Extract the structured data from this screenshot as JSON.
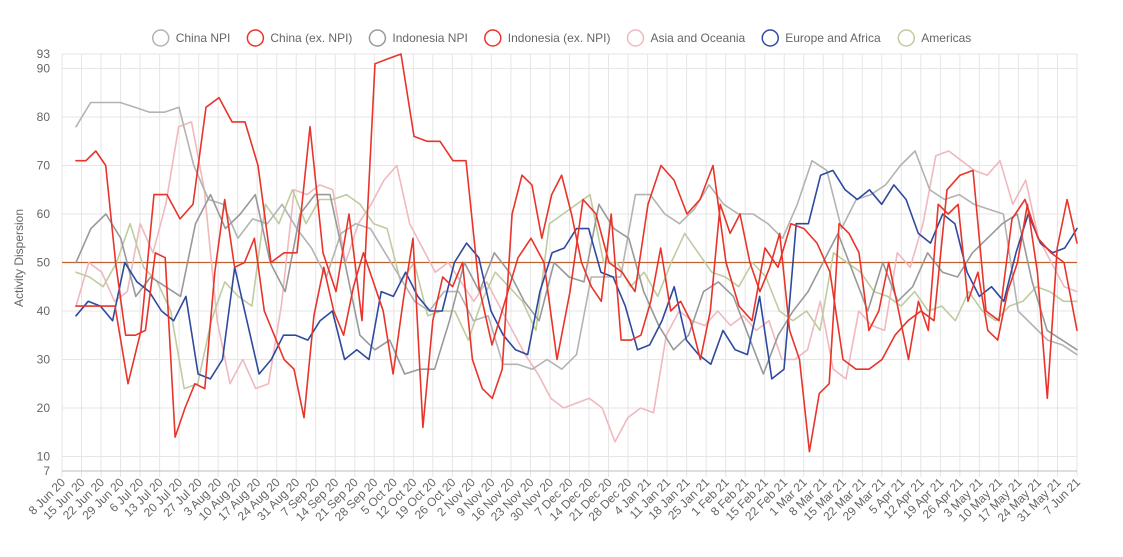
{
  "chart_data": {
    "type": "line",
    "ylabel": "Activity Dispersion",
    "xlabel": "",
    "ylim": [
      7,
      93
    ],
    "y_ticks": [
      7,
      10,
      20,
      30,
      40,
      50,
      60,
      70,
      80,
      90,
      93
    ],
    "x_tick_labels": [
      "8 Jun 20",
      "15 Jun 20",
      "22 Jun 20",
      "29 Jun 20",
      "6 Jul 20",
      "13 Jul 20",
      "20 Jul 20",
      "27 Jul 20",
      "3 Aug 20",
      "10 Aug 20",
      "17 Aug 20",
      "24 Aug 20",
      "31 Aug 20",
      "7 Sep 20",
      "14 Sep 20",
      "21 Sep 20",
      "28 Sep 20",
      "5 Oct 20",
      "12 Oct 20",
      "19 Oct 20",
      "26 Oct 20",
      "2 Nov 20",
      "9 Nov 20",
      "16 Nov 20",
      "23 Nov 20",
      "30 Nov 20",
      "7 Dec 20",
      "14 Dec 20",
      "21 Dec 20",
      "28 Dec 20",
      "4 Jan 21",
      "11 Jan 21",
      "18 Jan 21",
      "25 Jan 21",
      "1 Feb 21",
      "8 Feb 21",
      "15 Feb 21",
      "22 Feb 21",
      "1 Mar 21",
      "8 Mar 21",
      "15 Mar 21",
      "22 Mar 21",
      "29 Mar 21",
      "5 Apr 21",
      "12 Apr 21",
      "19 Apr 21",
      "26 Apr 21",
      "3 May 21",
      "10 May 21",
      "17 May 21",
      "24 May 21",
      "31 May 21",
      "7 Jun 21"
    ],
    "reference_line": {
      "value": 50,
      "color": "#c0622f"
    },
    "grid": true,
    "legend_position": "top",
    "series": [
      {
        "name": "China NPI",
        "color": "#b3b3b3",
        "values": [
          78,
          83,
          83,
          83,
          82,
          81,
          81,
          82,
          70,
          63,
          62,
          55,
          59,
          58,
          62,
          57,
          53,
          47,
          56,
          58,
          57,
          52,
          47,
          42,
          40,
          44,
          44,
          38,
          39,
          29,
          29,
          28,
          30,
          28,
          31,
          47,
          47,
          47,
          64,
          64,
          60,
          58,
          61,
          66,
          62,
          60,
          60,
          58,
          55,
          62,
          71,
          69,
          57,
          63,
          64,
          66,
          70,
          73,
          65,
          63,
          64,
          62,
          61,
          60,
          40,
          37,
          34,
          33,
          31
        ]
      },
      {
        "name": "China (ex. NPI)",
        "color": "#e8342a",
        "values": [
          41,
          41,
          41,
          41,
          25,
          36,
          64,
          64,
          59,
          62,
          82,
          84,
          79,
          79,
          70,
          50,
          52,
          52,
          78,
          52,
          44,
          60,
          38,
          91,
          92,
          93,
          76,
          75,
          75,
          71,
          71,
          45,
          33,
          42,
          51,
          55,
          50,
          30,
          44,
          63,
          60,
          50,
          48,
          44,
          62,
          70,
          67,
          60,
          63,
          70,
          50,
          41,
          38,
          53,
          49,
          58,
          57,
          54,
          48,
          30,
          28,
          28,
          30,
          35,
          38,
          40,
          38,
          65,
          68,
          69,
          40,
          38,
          59,
          63,
          55,
          52,
          50,
          36
        ]
      },
      {
        "name": "Indonesia NPI",
        "color": "#999999",
        "values": [
          50,
          57,
          60,
          55,
          43,
          47,
          45,
          43,
          58,
          64,
          57,
          60,
          64,
          50,
          44,
          60,
          64,
          64,
          50,
          35,
          32,
          34,
          27,
          28,
          28,
          38,
          50,
          44,
          52,
          48,
          42,
          38,
          50,
          47,
          46,
          62,
          57,
          55,
          44,
          37,
          32,
          35,
          44,
          46,
          43,
          35,
          27,
          35,
          40,
          44,
          50,
          56,
          48,
          40,
          50,
          42,
          45,
          52,
          48,
          47,
          52,
          55,
          58,
          60,
          46,
          36,
          34,
          32
        ]
      },
      {
        "name": "Indonesia (ex. NPI)",
        "color": "#e8342a",
        "values": [
          71,
          71,
          73,
          70,
          50,
          35,
          35,
          36,
          52,
          51,
          14,
          20,
          25,
          24,
          48,
          63,
          49,
          50,
          55,
          40,
          35,
          30,
          28,
          18,
          39,
          49,
          40,
          35,
          45,
          52,
          46,
          40,
          27,
          42,
          55,
          16,
          38,
          47,
          45,
          50,
          30,
          24,
          22,
          28,
          60,
          68,
          66,
          55,
          64,
          68,
          60,
          50,
          45,
          42,
          60,
          34,
          34,
          35,
          42,
          53,
          40,
          42,
          38,
          30,
          40,
          62,
          56,
          60,
          50,
          44,
          49,
          56,
          36,
          30,
          11,
          23,
          25,
          58,
          56,
          52,
          36,
          40,
          50,
          40,
          30,
          42,
          36,
          62,
          60,
          62,
          42,
          48,
          36,
          34,
          44,
          50,
          62,
          48,
          22,
          53,
          63,
          54
        ]
      },
      {
        "name": "Asia and Oceania",
        "color": "#f0b8bf",
        "values": [
          41,
          50,
          48,
          42,
          44,
          58,
          52,
          62,
          78,
          79,
          65,
          38,
          25,
          30,
          24,
          25,
          41,
          65,
          64,
          66,
          65,
          50,
          58,
          62,
          67,
          70,
          58,
          53,
          48,
          50,
          46,
          42,
          46,
          41,
          36,
          31,
          27,
          22,
          20,
          21,
          22,
          20,
          13,
          18,
          20,
          19,
          35,
          40,
          38,
          37,
          40,
          37,
          39,
          36,
          38,
          30,
          30,
          32,
          42,
          28,
          26,
          40,
          37,
          36,
          52,
          49,
          58,
          72,
          73,
          71,
          69,
          68,
          71,
          62,
          67,
          55,
          50,
          45,
          44
        ]
      },
      {
        "name": "Europe and Africa",
        "color": "#2e4a9e",
        "values": [
          39,
          42,
          41,
          38,
          50,
          46,
          44,
          40,
          38,
          43,
          27,
          26,
          30,
          49,
          38,
          27,
          30,
          35,
          35,
          34,
          38,
          40,
          30,
          32,
          30,
          44,
          43,
          48,
          43,
          40,
          40,
          50,
          54,
          51,
          40,
          35,
          32,
          31,
          44,
          52,
          53,
          57,
          57,
          48,
          47,
          41,
          32,
          33,
          38,
          45,
          34,
          31,
          29,
          36,
          32,
          31,
          43,
          26,
          28,
          58,
          58,
          68,
          69,
          65,
          63,
          65,
          62,
          66,
          63,
          56,
          54,
          60,
          58,
          48,
          43,
          45,
          42,
          52,
          60,
          54,
          52,
          53,
          57
        ]
      },
      {
        "name": "Americas",
        "color": "#bfcc9f",
        "values": [
          48,
          47,
          45,
          50,
          58,
          49,
          46,
          40,
          24,
          25,
          38,
          46,
          43,
          41,
          62,
          58,
          65,
          58,
          63,
          63,
          64,
          62,
          58,
          57,
          46,
          50,
          39,
          40,
          40,
          34,
          42,
          48,
          45,
          42,
          36,
          58,
          60,
          62,
          64,
          50,
          50,
          45,
          48,
          43,
          50,
          56,
          52,
          48,
          47,
          45,
          50,
          47,
          40,
          38,
          40,
          36,
          52,
          50,
          48,
          44,
          43,
          41,
          44,
          40,
          41,
          38,
          44,
          40,
          38,
          41,
          42,
          45,
          44,
          42,
          42
        ]
      }
    ]
  }
}
